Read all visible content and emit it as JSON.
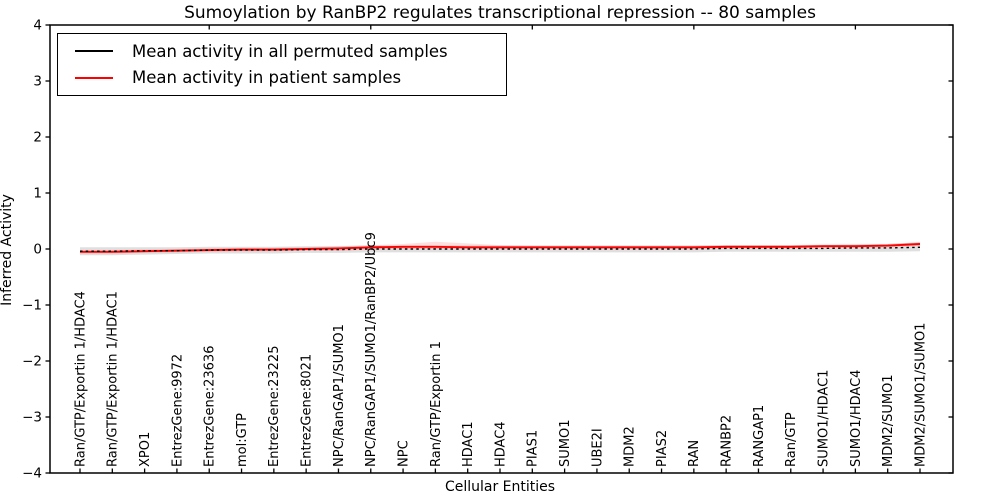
{
  "chart_data": {
    "type": "line",
    "title": "Sumoylation by RanBP2 regulates transcriptional repression -- 80 samples",
    "xlabel": "Cellular Entities",
    "ylabel": "Inferred Activity",
    "ylim": [
      -4,
      4
    ],
    "grid": false,
    "background_color": "#ffffff",
    "frame_color": "#000000",
    "yticks": [
      {
        "value": 4,
        "label": "4"
      },
      {
        "value": 3,
        "label": "3"
      },
      {
        "value": 2,
        "label": "2"
      },
      {
        "value": 1,
        "label": "1"
      },
      {
        "value": 0,
        "label": "0"
      },
      {
        "value": -1,
        "label": "−1"
      },
      {
        "value": -2,
        "label": "−2"
      },
      {
        "value": -3,
        "label": "−3"
      },
      {
        "value": -4,
        "label": "−4"
      }
    ],
    "top_tick_indices": [
      4,
      9,
      14,
      19,
      24
    ],
    "categories": [
      "Ran/GTP/Exportin 1/HDAC4",
      "Ran/GTP/Exportin 1/HDAC1",
      "XPO1",
      "EntrezGene:9972",
      "EntrezGene:23636",
      "mol:GTP",
      "EntrezGene:23225",
      "EntrezGene:8021",
      "NPC/RanGAP1/SUMO1",
      "NPC/RanGAP1/SUMO1/RanBP2/Ubc9",
      "NPC",
      "Ran/GTP/Exportin 1",
      "HDAC1",
      "HDAC4",
      "PIAS1",
      "SUMO1",
      "UBE2I",
      "MDM2",
      "PIAS2",
      "RAN",
      "RANBP2",
      "RANGAP1",
      "Ran/GTP",
      "SUMO1/HDAC1",
      "SUMO1/HDAC4",
      "MDM2/SUMO1",
      "MDM2/SUMO1/SUMO1"
    ],
    "series": [
      {
        "name": "Mean activity in all permuted samples",
        "color": "#000000",
        "style": "dotted",
        "values": [
          -0.04,
          -0.04,
          -0.03,
          -0.03,
          -0.02,
          -0.02,
          -0.02,
          -0.01,
          -0.01,
          0.0,
          0.0,
          0.0,
          0.0,
          0.0,
          0.0,
          0.0,
          0.0,
          0.0,
          0.0,
          0.0,
          0.01,
          0.01,
          0.01,
          0.01,
          0.02,
          0.02,
          0.03
        ]
      },
      {
        "name": "Mean activity in patient samples",
        "color": "#ff0000",
        "style": "solid",
        "values": [
          -0.05,
          -0.05,
          -0.04,
          -0.03,
          -0.02,
          -0.01,
          -0.01,
          0.0,
          0.01,
          0.03,
          0.04,
          0.04,
          0.03,
          0.03,
          0.03,
          0.03,
          0.03,
          0.03,
          0.03,
          0.03,
          0.04,
          0.04,
          0.04,
          0.05,
          0.05,
          0.06,
          0.09
        ]
      }
    ],
    "bands": [
      {
        "name": "permuted-range",
        "color": "rgba(110,110,110,0.22)",
        "upper": [
          0.03,
          0.03,
          0.03,
          0.03,
          0.04,
          0.04,
          0.04,
          0.05,
          0.05,
          0.06,
          0.06,
          0.06,
          0.06,
          0.06,
          0.06,
          0.06,
          0.06,
          0.06,
          0.06,
          0.06,
          0.07,
          0.07,
          0.07,
          0.07,
          0.08,
          0.09,
          0.12
        ],
        "lower": [
          -0.11,
          -0.11,
          -0.1,
          -0.09,
          -0.08,
          -0.08,
          -0.08,
          -0.07,
          -0.07,
          -0.06,
          -0.06,
          -0.06,
          -0.06,
          -0.06,
          -0.06,
          -0.06,
          -0.06,
          -0.06,
          -0.06,
          -0.06,
          -0.05,
          -0.05,
          -0.05,
          -0.05,
          -0.05,
          -0.05,
          -0.04
        ]
      },
      {
        "name": "patient-range",
        "color": "rgba(255,0,0,0.13)",
        "upper": [
          -0.02,
          -0.02,
          -0.01,
          0.0,
          0.01,
          0.02,
          0.02,
          0.03,
          0.05,
          0.07,
          0.09,
          0.13,
          0.1,
          0.07,
          0.06,
          0.06,
          0.06,
          0.06,
          0.06,
          0.06,
          0.07,
          0.07,
          0.07,
          0.08,
          0.08,
          0.09,
          0.12
        ],
        "lower": [
          -0.08,
          -0.08,
          -0.07,
          -0.06,
          -0.05,
          -0.04,
          -0.04,
          -0.03,
          -0.03,
          -0.01,
          0.0,
          0.0,
          0.0,
          0.0,
          0.0,
          0.0,
          0.0,
          0.0,
          0.0,
          0.0,
          0.01,
          0.01,
          0.01,
          0.02,
          0.02,
          0.03,
          0.06
        ]
      }
    ],
    "legend": {
      "position": "upper left",
      "entries": [
        {
          "label": "Mean activity in all permuted samples",
          "color": "#000000"
        },
        {
          "label": "Mean activity in patient samples",
          "color": "#ff0000"
        }
      ]
    }
  }
}
